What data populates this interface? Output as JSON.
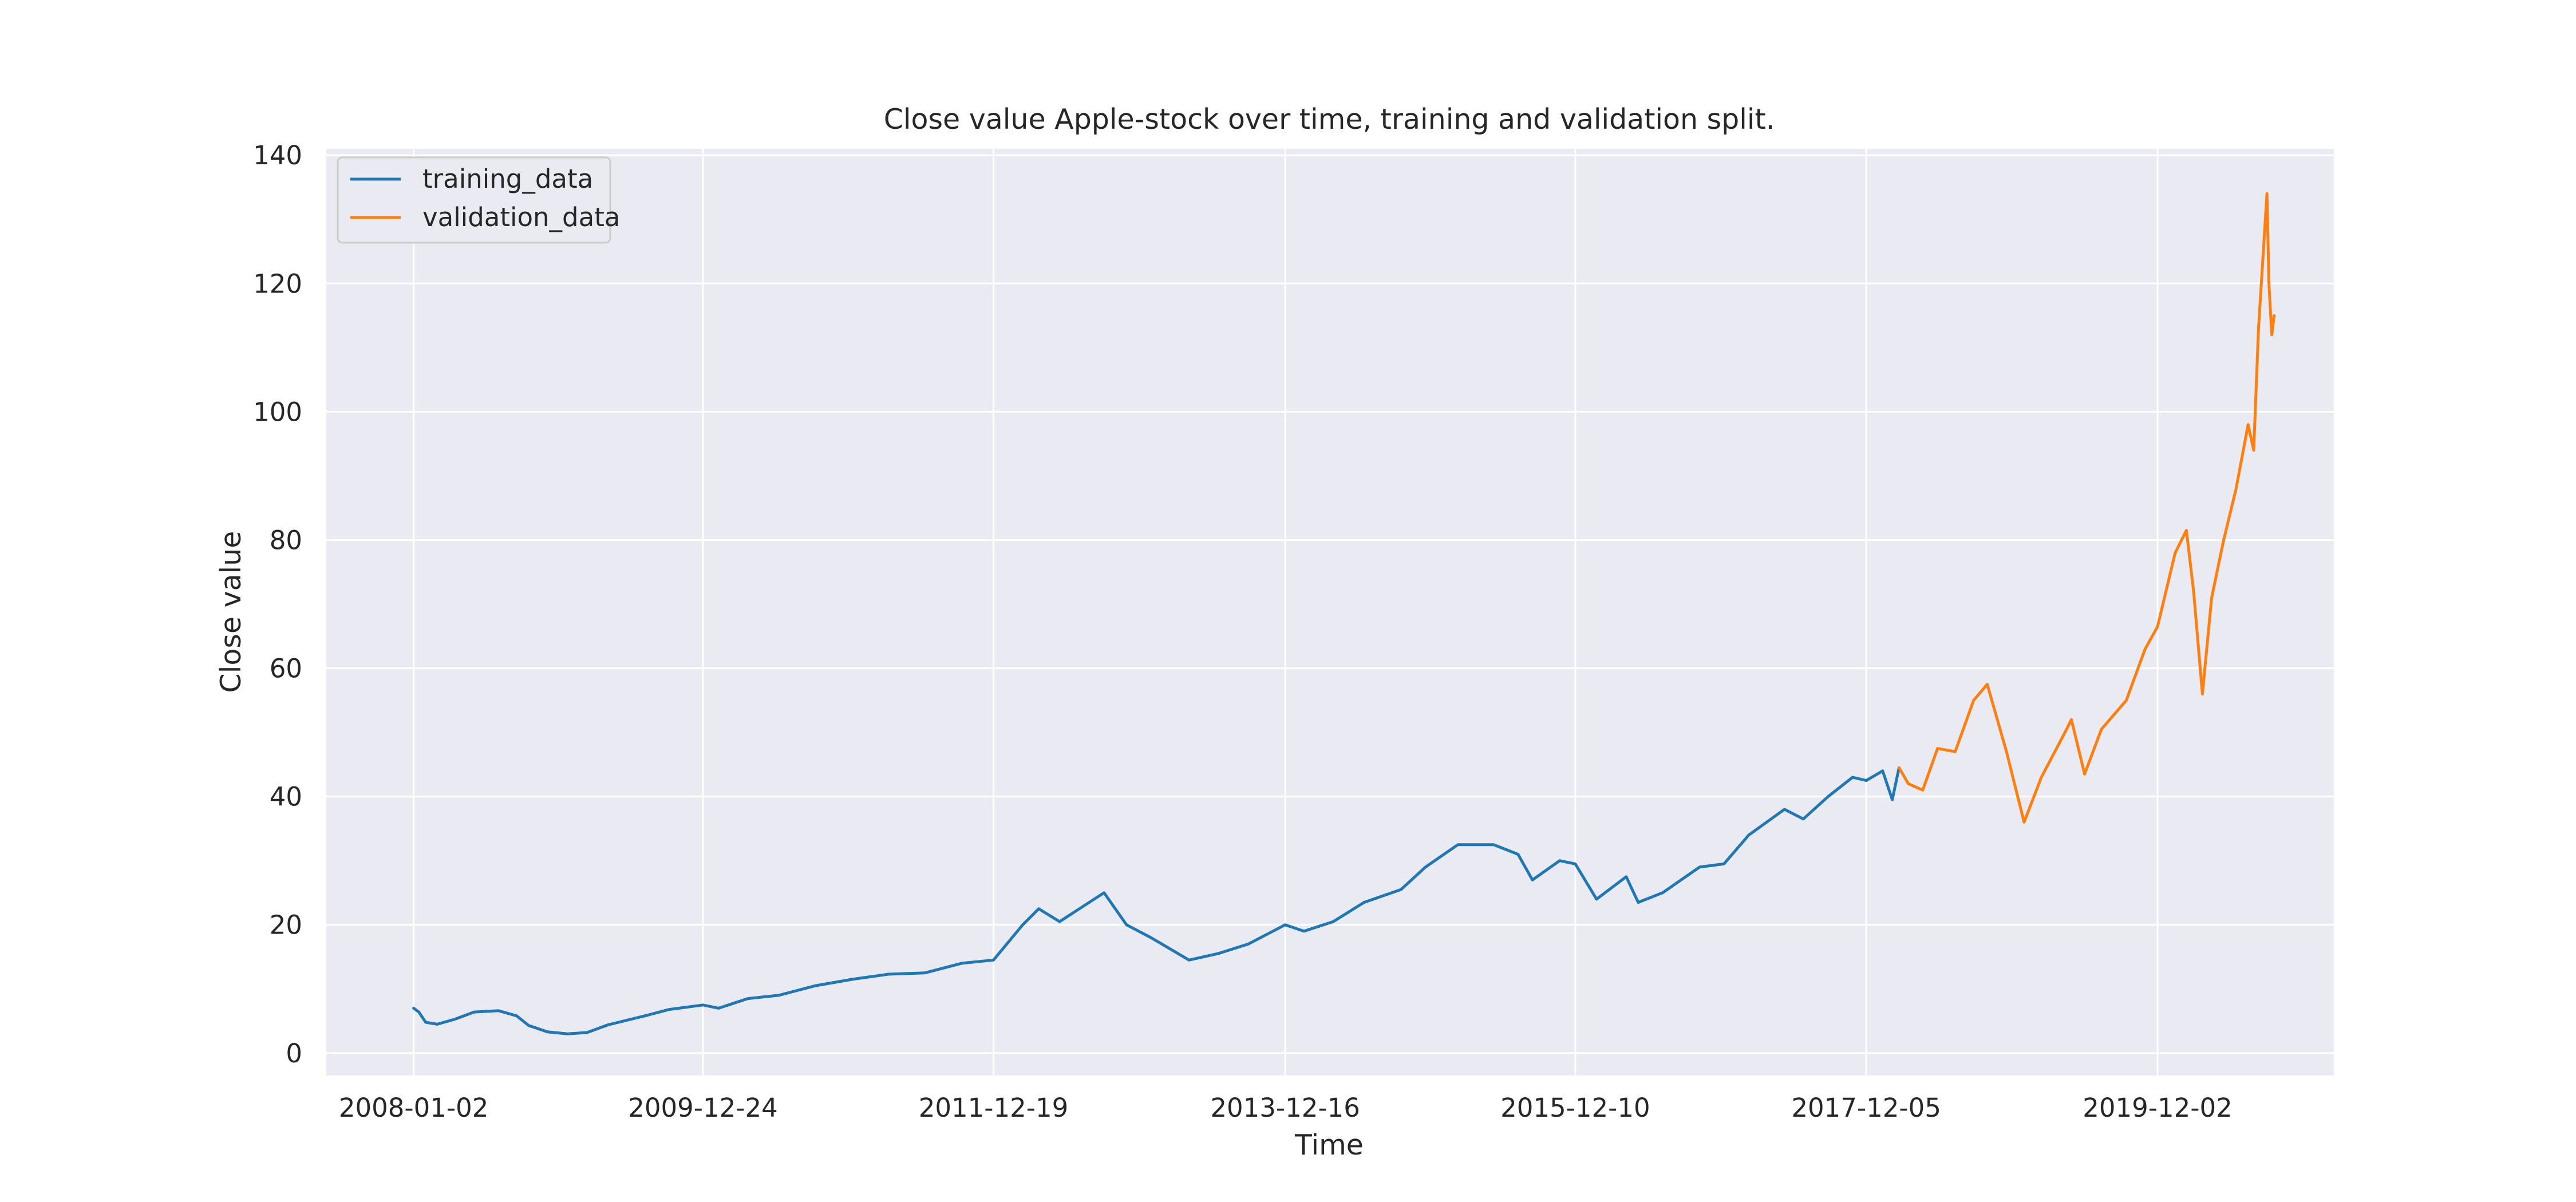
{
  "chart_data": {
    "type": "line",
    "title": "Close value Apple-stock over time, training and validation split.",
    "xlabel": "Time",
    "ylabel": "Close value",
    "x_tick_labels": [
      "2008-01-02",
      "2009-12-24",
      "2011-12-19",
      "2013-12-16",
      "2015-12-10",
      "2017-12-05",
      "2019-12-02"
    ],
    "x_range": [
      "2007-05-29",
      "2021-02-14"
    ],
    "ylim": [
      -3.5,
      141
    ],
    "y_ticks": [
      0,
      20,
      40,
      60,
      80,
      100,
      120,
      140
    ],
    "grid": true,
    "legend_position": "top-left",
    "colors": {
      "background": "#eaeaf2",
      "grid": "#ffffff",
      "training": "#1f77b4",
      "validation": "#ff7f0e"
    },
    "series": [
      {
        "name": "training_data",
        "color": "#1f77b4",
        "points": [
          [
            "2008-01-02",
            7.0
          ],
          [
            "2008-01-15",
            6.4
          ],
          [
            "2008-02-01",
            4.8
          ],
          [
            "2008-03-01",
            4.5
          ],
          [
            "2008-04-15",
            5.3
          ],
          [
            "2008-06-01",
            6.4
          ],
          [
            "2008-08-01",
            6.6
          ],
          [
            "2008-09-15",
            5.8
          ],
          [
            "2008-10-15",
            4.3
          ],
          [
            "2008-12-01",
            3.3
          ],
          [
            "2009-01-20",
            3.0
          ],
          [
            "2009-03-10",
            3.2
          ],
          [
            "2009-05-01",
            4.4
          ],
          [
            "2009-08-01",
            5.8
          ],
          [
            "2009-10-01",
            6.8
          ],
          [
            "2009-12-24",
            7.5
          ],
          [
            "2010-02-01",
            7.0
          ],
          [
            "2010-04-15",
            8.5
          ],
          [
            "2010-07-01",
            9.0
          ],
          [
            "2010-10-01",
            10.5
          ],
          [
            "2011-01-01",
            11.5
          ],
          [
            "2011-04-01",
            12.3
          ],
          [
            "2011-07-01",
            12.5
          ],
          [
            "2011-10-01",
            14.0
          ],
          [
            "2011-12-19",
            14.5
          ],
          [
            "2012-03-01",
            20.0
          ],
          [
            "2012-04-10",
            22.5
          ],
          [
            "2012-06-01",
            20.5
          ],
          [
            "2012-09-20",
            25.0
          ],
          [
            "2012-11-15",
            20.0
          ],
          [
            "2013-01-15",
            18.0
          ],
          [
            "2013-04-20",
            14.5
          ],
          [
            "2013-07-01",
            15.5
          ],
          [
            "2013-09-15",
            17.0
          ],
          [
            "2013-12-16",
            20.0
          ],
          [
            "2014-02-01",
            19.0
          ],
          [
            "2014-04-15",
            20.5
          ],
          [
            "2014-07-01",
            23.5
          ],
          [
            "2014-10-01",
            25.5
          ],
          [
            "2014-12-01",
            29.0
          ],
          [
            "2015-02-20",
            32.5
          ],
          [
            "2015-05-20",
            32.5
          ],
          [
            "2015-07-20",
            31.0
          ],
          [
            "2015-08-25",
            27.0
          ],
          [
            "2015-11-01",
            30.0
          ],
          [
            "2015-12-10",
            29.5
          ],
          [
            "2016-02-01",
            24.0
          ],
          [
            "2016-04-15",
            27.5
          ],
          [
            "2016-05-15",
            23.5
          ],
          [
            "2016-07-15",
            25.0
          ],
          [
            "2016-10-15",
            29.0
          ],
          [
            "2016-12-15",
            29.5
          ],
          [
            "2017-02-15",
            34.0
          ],
          [
            "2017-05-15",
            38.0
          ],
          [
            "2017-07-01",
            36.5
          ],
          [
            "2017-09-01",
            40.0
          ],
          [
            "2017-11-01",
            43.0
          ],
          [
            "2017-12-05",
            42.5
          ],
          [
            "2018-01-15",
            44.0
          ],
          [
            "2018-02-08",
            39.5
          ],
          [
            "2018-02-25",
            44.5
          ]
        ]
      },
      {
        "name": "validation_data",
        "color": "#ff7f0e",
        "points": [
          [
            "2018-02-25",
            44.5
          ],
          [
            "2018-03-20",
            42.0
          ],
          [
            "2018-04-25",
            41.0
          ],
          [
            "2018-06-01",
            47.5
          ],
          [
            "2018-07-15",
            47.0
          ],
          [
            "2018-08-30",
            55.0
          ],
          [
            "2018-10-03",
            57.5
          ],
          [
            "2018-11-20",
            47.0
          ],
          [
            "2019-01-03",
            36.0
          ],
          [
            "2019-02-15",
            43.0
          ],
          [
            "2019-04-15",
            50.0
          ],
          [
            "2019-05-01",
            52.0
          ],
          [
            "2019-06-03",
            43.5
          ],
          [
            "2019-07-15",
            50.5
          ],
          [
            "2019-09-15",
            55.0
          ],
          [
            "2019-11-01",
            63.0
          ],
          [
            "2019-12-02",
            66.5
          ],
          [
            "2020-01-15",
            78.0
          ],
          [
            "2020-02-12",
            81.5
          ],
          [
            "2020-03-01",
            72.0
          ],
          [
            "2020-03-23",
            56.0
          ],
          [
            "2020-04-15",
            71.0
          ],
          [
            "2020-05-15",
            80.0
          ],
          [
            "2020-06-15",
            88.0
          ],
          [
            "2020-07-15",
            98.0
          ],
          [
            "2020-07-29",
            94.0
          ],
          [
            "2020-08-10",
            113.0
          ],
          [
            "2020-08-31",
            134.0
          ],
          [
            "2020-09-05",
            120.0
          ],
          [
            "2020-09-12",
            112.0
          ],
          [
            "2020-09-18",
            115.0
          ]
        ]
      }
    ]
  }
}
